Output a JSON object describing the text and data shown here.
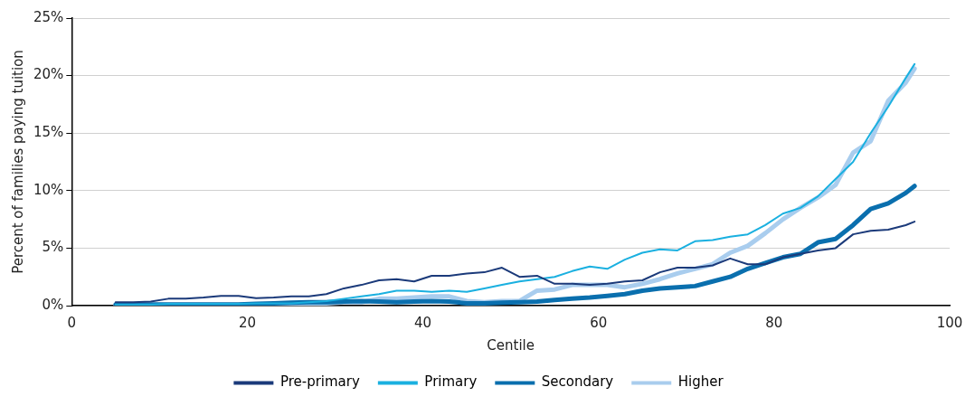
{
  "chart_data": {
    "type": "line",
    "xlabel": "Centile",
    "ylabel": "Percent of families paying tuition",
    "x": [
      5,
      7,
      9,
      11,
      13,
      15,
      17,
      19,
      21,
      23,
      25,
      27,
      29,
      31,
      33,
      35,
      37,
      39,
      41,
      43,
      45,
      47,
      49,
      51,
      53,
      55,
      57,
      59,
      61,
      63,
      65,
      67,
      69,
      71,
      73,
      75,
      77,
      79,
      81,
      83,
      85,
      87,
      89,
      91,
      93,
      95,
      96
    ],
    "series": [
      {
        "name": "Pre-primary",
        "color": "#1b3a7a",
        "values": [
          0.3,
          0.3,
          0.35,
          0.6,
          0.6,
          0.7,
          0.85,
          0.85,
          0.65,
          0.7,
          0.8,
          0.8,
          1.0,
          1.5,
          1.8,
          2.2,
          2.3,
          2.1,
          2.6,
          2.6,
          2.8,
          2.9,
          3.3,
          2.5,
          2.6,
          1.9,
          1.9,
          1.8,
          1.9,
          2.1,
          2.2,
          2.9,
          3.3,
          3.3,
          3.5,
          4.1,
          3.6,
          3.6,
          4.2,
          4.5,
          4.8,
          5.0,
          6.2,
          6.5,
          6.6,
          7.0,
          7.3
        ]
      },
      {
        "name": "Primary",
        "color": "#1ab0e0",
        "values": [
          0.1,
          0.1,
          0.1,
          0.15,
          0.15,
          0.15,
          0.15,
          0.15,
          0.2,
          0.2,
          0.2,
          0.3,
          0.4,
          0.6,
          0.8,
          1.0,
          1.3,
          1.3,
          1.2,
          1.3,
          1.2,
          1.5,
          1.8,
          2.1,
          2.3,
          2.5,
          3.0,
          3.4,
          3.2,
          4.0,
          4.6,
          4.9,
          4.8,
          5.6,
          5.7,
          6.0,
          6.2,
          7.0,
          8.0,
          8.5,
          9.5,
          11.0,
          12.5,
          15.0,
          17.3,
          19.8,
          21.0
        ]
      },
      {
        "name": "Secondary",
        "color": "#0a6fae",
        "values": [
          0.1,
          0.1,
          0.1,
          0.1,
          0.1,
          0.1,
          0.1,
          0.1,
          0.15,
          0.2,
          0.25,
          0.3,
          0.3,
          0.35,
          0.4,
          0.35,
          0.3,
          0.35,
          0.4,
          0.35,
          0.2,
          0.2,
          0.25,
          0.3,
          0.35,
          0.5,
          0.6,
          0.7,
          0.85,
          1.0,
          1.3,
          1.5,
          1.6,
          1.7,
          2.1,
          2.5,
          3.2,
          3.7,
          4.2,
          4.5,
          5.5,
          5.8,
          7.0,
          8.4,
          8.9,
          9.8,
          10.4
        ]
      },
      {
        "name": "Higher",
        "color": "#a9cdee",
        "values": [
          0,
          0,
          0,
          0,
          0,
          0,
          0,
          0,
          0,
          0.05,
          0.1,
          0.15,
          0.2,
          0.3,
          0.3,
          0.6,
          0.6,
          0.7,
          0.8,
          0.8,
          0.4,
          0.3,
          0.4,
          0.4,
          1.3,
          1.4,
          1.8,
          1.8,
          1.8,
          1.6,
          1.9,
          2.3,
          2.8,
          3.2,
          3.6,
          4.6,
          5.2,
          6.3,
          7.5,
          8.5,
          9.4,
          10.5,
          13.3,
          14.3,
          17.8,
          19.4,
          20.6
        ]
      }
    ],
    "xlim": [
      0,
      100
    ],
    "xticks": [
      0,
      20,
      40,
      60,
      80,
      100
    ],
    "ylim": [
      0,
      25
    ],
    "yticks": [
      {
        "value": 0,
        "label": "0%"
      },
      {
        "value": 5,
        "label": "5%"
      },
      {
        "value": 10,
        "label": "10%"
      },
      {
        "value": 15,
        "label": "15%"
      },
      {
        "value": 20,
        "label": "20%"
      },
      {
        "value": 25,
        "label": "25%"
      }
    ],
    "grid": "y",
    "legend": "bottom",
    "marker": "none",
    "line_style": "solid"
  }
}
